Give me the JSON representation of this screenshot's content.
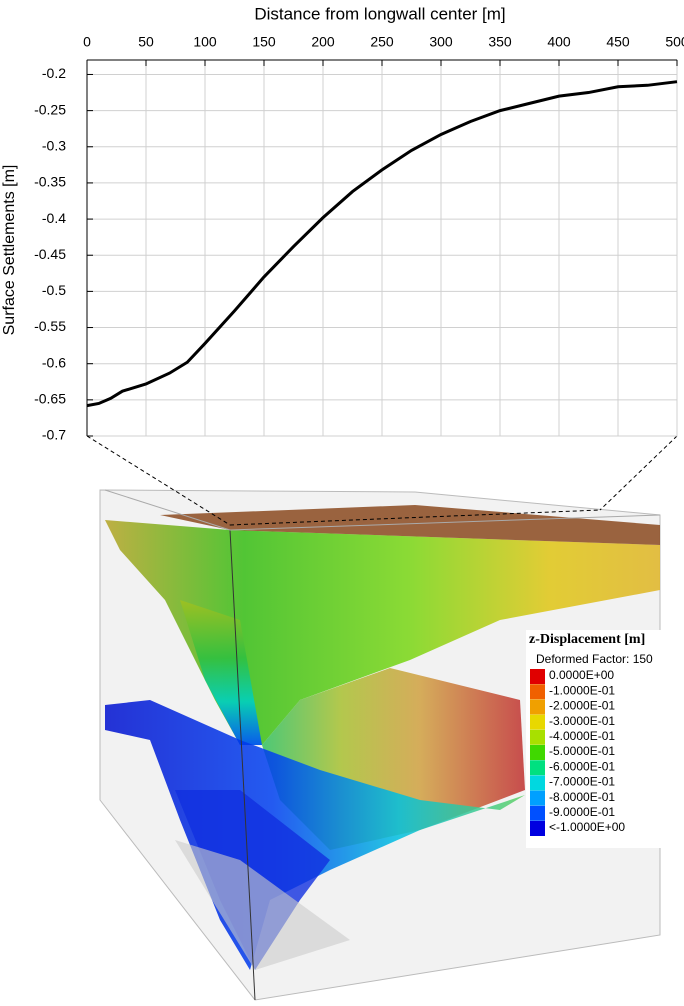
{
  "chart_data": {
    "type": "line",
    "title": "Distance from longwall center [m]",
    "y_label": "Surface Settlements [m]",
    "x": [
      0,
      10,
      20,
      30,
      50,
      70,
      85,
      100,
      125,
      150,
      175,
      200,
      225,
      250,
      275,
      300,
      325,
      350,
      375,
      400,
      425,
      450,
      475,
      500
    ],
    "series": [
      {
        "color": "#000000",
        "values": [
          -0.658,
          -0.655,
          -0.648,
          -0.638,
          -0.628,
          -0.613,
          -0.598,
          -0.572,
          -0.527,
          -0.48,
          -0.438,
          -0.398,
          -0.362,
          -0.332,
          -0.305,
          -0.283,
          -0.265,
          -0.25,
          -0.24,
          -0.23,
          -0.225,
          -0.217,
          -0.215,
          -0.21
        ]
      }
    ],
    "xlim": [
      0,
      500
    ],
    "xticks": [
      0,
      50,
      100,
      150,
      200,
      250,
      300,
      350,
      400,
      450,
      500
    ],
    "ylim": [
      -0.7,
      -0.18
    ],
    "yticks": [
      -0.7,
      -0.65,
      -0.6,
      -0.55,
      -0.5,
      -0.45,
      -0.4,
      -0.35,
      -0.3,
      -0.25,
      -0.2
    ],
    "grid": true
  },
  "model_legend": {
    "title": "z-Displacement [m]",
    "subtitle": "Deformed Factor: 150",
    "entries": [
      {
        "label": "0.0000E+00",
        "color": "#e00000"
      },
      {
        "label": "-1.0000E-01",
        "color": "#f06000"
      },
      {
        "label": "-2.0000E-01",
        "color": "#f0a000"
      },
      {
        "label": "-3.0000E-01",
        "color": "#e8d800"
      },
      {
        "label": "-4.0000E-01",
        "color": "#a8e000"
      },
      {
        "label": "-5.0000E-01",
        "color": "#40d800"
      },
      {
        "label": "-6.0000E-01",
        "color": "#00e080"
      },
      {
        "label": "-7.0000E-01",
        "color": "#00d8e0"
      },
      {
        "label": "-8.0000E-01",
        "color": "#00a0ff"
      },
      {
        "label": "-9.0000E-01",
        "color": "#0050ff"
      },
      {
        "label": "<-1.0000E+00",
        "color": "#0000e0"
      }
    ]
  }
}
